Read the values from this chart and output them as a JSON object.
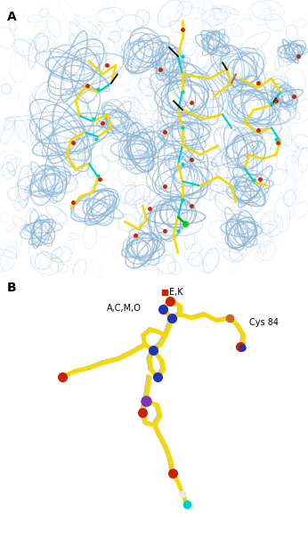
{
  "panel_a_label": "A",
  "panel_b_label": "B",
  "fig_bg": "#ffffff",
  "panel_a_bg": "#ffffff",
  "panel_b_bg": "#ffffff",
  "label_fontsize": 10,
  "label_fontweight": "bold",
  "annotation_ek": "E,K",
  "annotation_acmo": "A,C,M,O",
  "annotation_cys84": "Cys 84",
  "annot_fontsize": 7,
  "mesh_color": "#8ab4d4",
  "mesh_color2": "#aaccdd",
  "yellow": "#f5d800",
  "cyan_bond": "#00cccc",
  "red_atom": "#cc2200",
  "blue_atom": "#2233bb",
  "purple_atom": "#7733bb",
  "orange_atom": "#cc6622",
  "green_atom": "#00aa22",
  "gray_bond": "#bbbbbb",
  "white_bond": "#e8e8e8",
  "black_bond": "#111111",
  "dark_red": "#aa1100"
}
